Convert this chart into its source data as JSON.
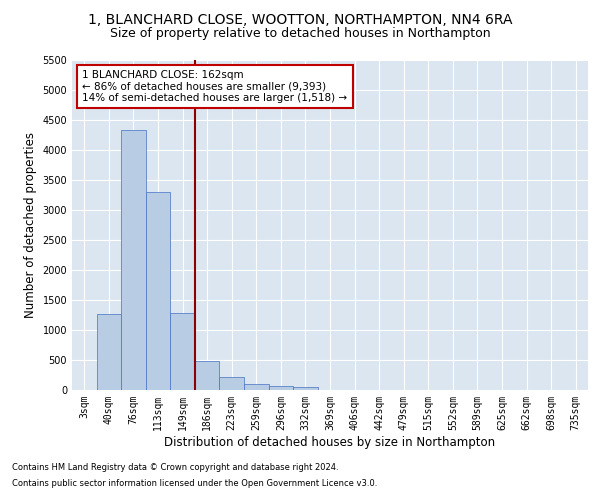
{
  "title": "1, BLANCHARD CLOSE, WOOTTON, NORTHAMPTON, NN4 6RA",
  "subtitle": "Size of property relative to detached houses in Northampton",
  "xlabel": "Distribution of detached houses by size in Northampton",
  "ylabel": "Number of detached properties",
  "footnote1": "Contains HM Land Registry data © Crown copyright and database right 2024.",
  "footnote2": "Contains public sector information licensed under the Open Government Licence v3.0.",
  "bar_labels": [
    "3sqm",
    "40sqm",
    "76sqm",
    "113sqm",
    "149sqm",
    "186sqm",
    "223sqm",
    "259sqm",
    "296sqm",
    "332sqm",
    "369sqm",
    "406sqm",
    "442sqm",
    "479sqm",
    "515sqm",
    "552sqm",
    "589sqm",
    "625sqm",
    "662sqm",
    "698sqm",
    "735sqm"
  ],
  "bar_values": [
    0,
    1270,
    4330,
    3300,
    1290,
    490,
    220,
    100,
    70,
    55,
    0,
    0,
    0,
    0,
    0,
    0,
    0,
    0,
    0,
    0,
    0
  ],
  "bar_color": "#b8cce4",
  "bar_edge_color": "#4472c4",
  "background_color": "#dce6f1",
  "grid_color": "#ffffff",
  "vline_x": 4.5,
  "vline_color": "#8b0000",
  "annotation_line1": "1 BLANCHARD CLOSE: 162sqm",
  "annotation_line2": "← 86% of detached houses are smaller (9,393)",
  "annotation_line3": "14% of semi-detached houses are larger (1,518) →",
  "annotation_box_color": "#ffffff",
  "annotation_box_edgecolor": "#c00000",
  "ylim": [
    0,
    5500
  ],
  "yticks": [
    0,
    500,
    1000,
    1500,
    2000,
    2500,
    3000,
    3500,
    4000,
    4500,
    5000,
    5500
  ],
  "title_fontsize": 10,
  "subtitle_fontsize": 9,
  "xlabel_fontsize": 8.5,
  "ylabel_fontsize": 8.5,
  "tick_fontsize": 7,
  "annotation_fontsize": 7.5,
  "fig_bg": "#ffffff"
}
